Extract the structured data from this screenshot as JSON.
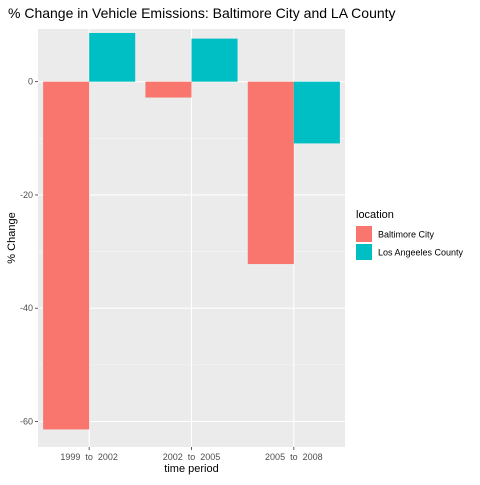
{
  "chart_data": {
    "type": "bar",
    "title": "% Change in Vehicle Emissions: Baltimore City and LA County",
    "xlabel": "time period",
    "ylabel": "% Change",
    "categories": [
      "1999  to  2002",
      "2002  to  2005",
      "2005  to  2008"
    ],
    "series": [
      {
        "name": "Baltimore City",
        "color": "#F8766D",
        "values": [
          -61.4,
          -2.8,
          -32.2
        ]
      },
      {
        "name": "Los Angeeles County",
        "color": "#00BFC4",
        "values": [
          8.6,
          7.6,
          -10.9
        ]
      }
    ],
    "ylim": [
      -64.5,
      9.3
    ],
    "yticks": [
      0,
      -20,
      -40,
      -60
    ],
    "grid": true,
    "panel_background": "#EBEBEB",
    "legend": {
      "title": "location",
      "position": "right"
    }
  }
}
